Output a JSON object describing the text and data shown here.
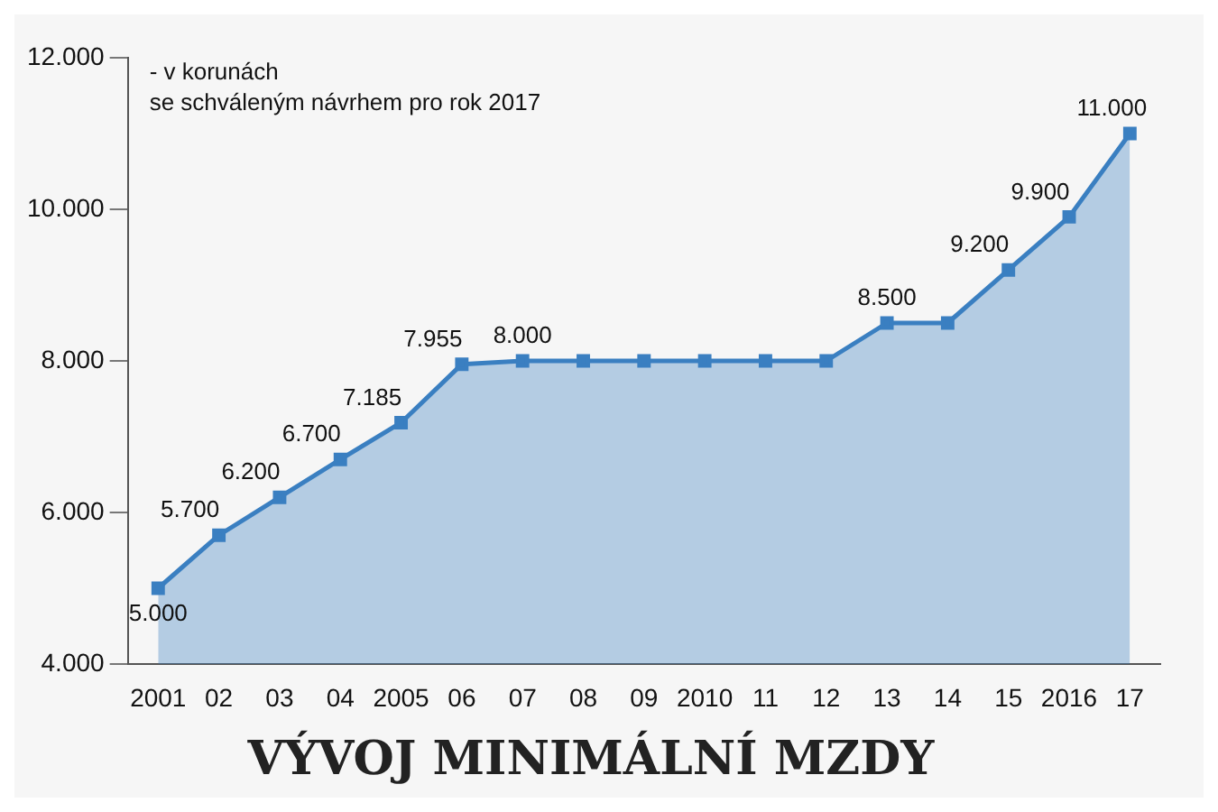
{
  "chart_data": {
    "type": "area",
    "title": "VÝVOJ MINIMÁLNÍ MZDY",
    "annotations": [
      "- v korunách",
      "se schváleným návrhem pro rok 2017"
    ],
    "categories": [
      "2001",
      "02",
      "03",
      "04",
      "2005",
      "06",
      "07",
      "08",
      "09",
      "2010",
      "11",
      "12",
      "13",
      "14",
      "15",
      "2016",
      "17"
    ],
    "series": [
      {
        "color": "#3a7fc1",
        "values": [
          5000,
          5700,
          6200,
          6700,
          7185,
          7955,
          8000,
          8000,
          8000,
          8000,
          8000,
          8000,
          8500,
          8500,
          9200,
          9900,
          11000
        ],
        "value_labels": [
          "5.000",
          "5.700",
          "6.200",
          "6.700",
          "7.185",
          "7.955",
          "8.000",
          null,
          null,
          null,
          null,
          null,
          "8.500",
          null,
          "9.200",
          "9.900",
          "11.000"
        ]
      }
    ],
    "ylim": [
      4000,
      12000
    ],
    "yticks": [
      {
        "value": 4000,
        "label": "4.000"
      },
      {
        "value": 6000,
        "label": "6.000"
      },
      {
        "value": 8000,
        "label": "8.000"
      },
      {
        "value": 10000,
        "label": "10.000"
      },
      {
        "value": 12000,
        "label": "12.000"
      }
    ],
    "grid": false,
    "legend": false,
    "marker": "square",
    "line_style": "solid"
  }
}
